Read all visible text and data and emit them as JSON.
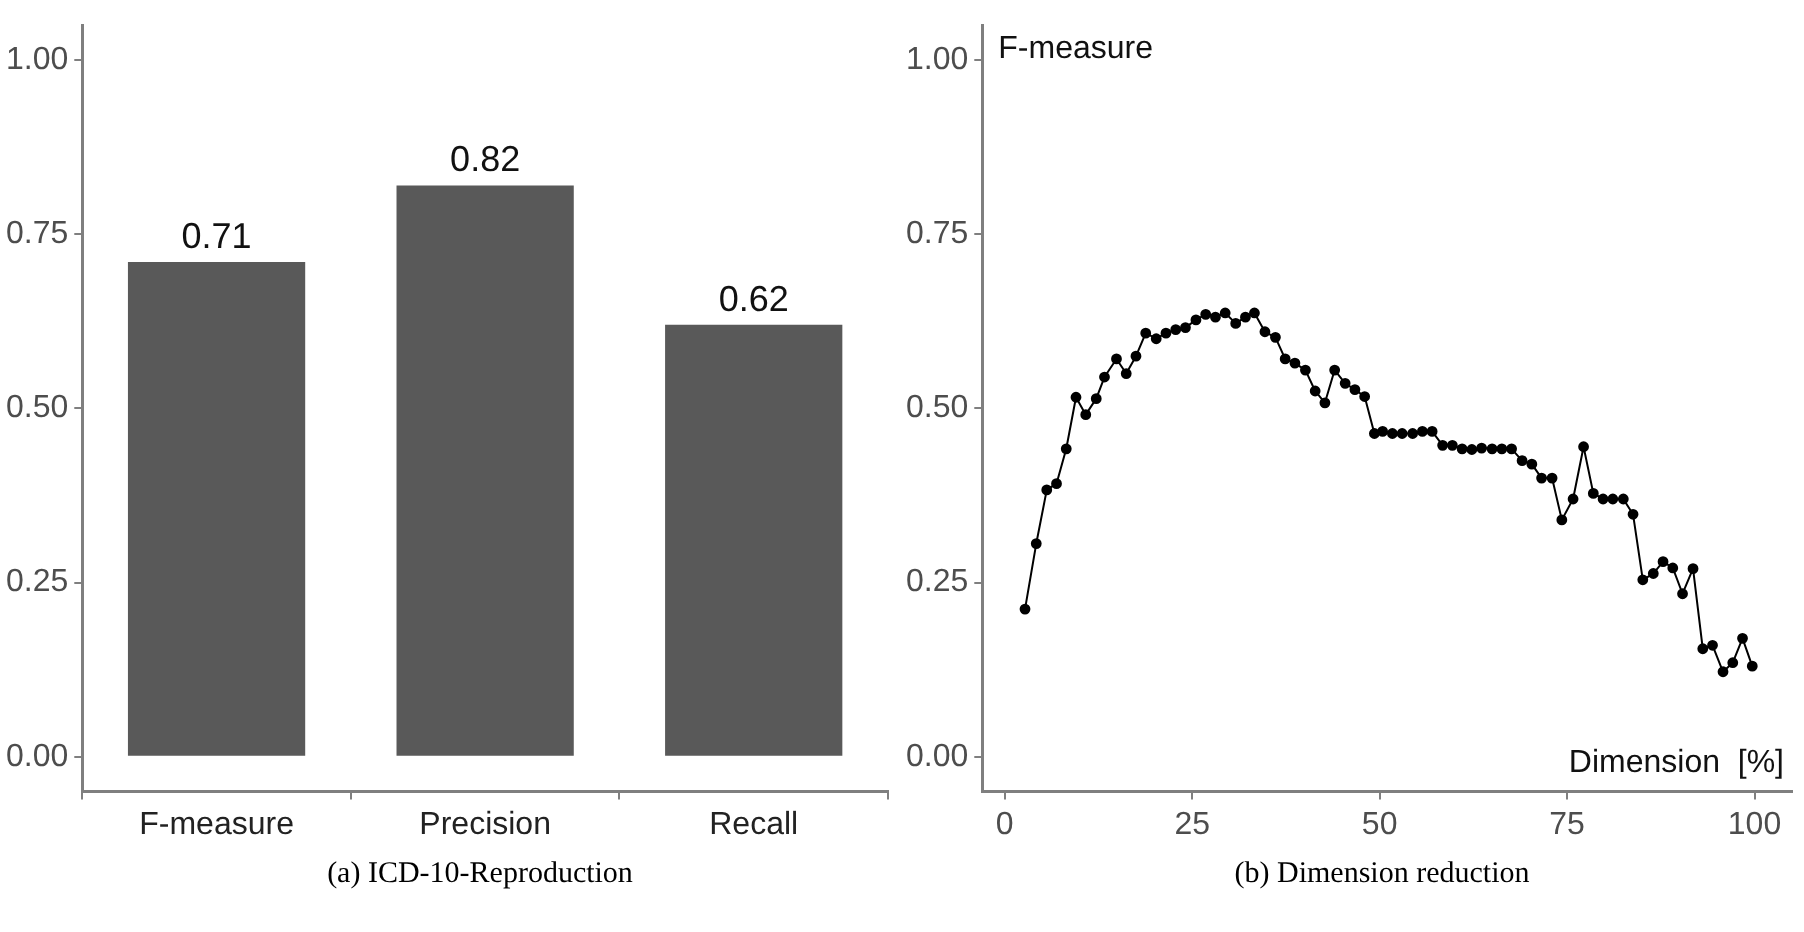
{
  "chart_data": [
    {
      "type": "bar",
      "categories": [
        "F-measure",
        "Precision",
        "Recall"
      ],
      "values": [
        0.71,
        0.82,
        0.62
      ],
      "color": "#595959",
      "data_labels": true,
      "grid": false,
      "ylim": [
        -0.05,
        1.05
      ],
      "yticks": [
        {
          "value": 0,
          "label": "0.00"
        },
        {
          "value": 0.25,
          "label": "0.25"
        },
        {
          "value": 0.5,
          "label": "0.50"
        },
        {
          "value": 0.75,
          "label": "0.75"
        },
        {
          "value": 1,
          "label": "1.00"
        }
      ],
      "annotations": [
        "(a)  ICD-10-Reproduction"
      ]
    },
    {
      "type": "line",
      "ylabel": "F-measure",
      "xlabel": "Dimension  [%]",
      "color": "#000000",
      "marker": "circle",
      "grid": false,
      "x": [
        2.7,
        4.2,
        5.6,
        6.9,
        8.2,
        9.5,
        10.8,
        12.2,
        13.3,
        14.9,
        16.2,
        17.5,
        18.8,
        20.2,
        21.5,
        22.8,
        24.1,
        25.5,
        26.8,
        28.1,
        29.4,
        30.8,
        32.1,
        33.3,
        34.7,
        36.1,
        37.4,
        38.7,
        40.1,
        41.4,
        42.7,
        44,
        45.4,
        46.7,
        48,
        49.3,
        50.4,
        51.7,
        53,
        54.4,
        55.7,
        57,
        58.4,
        59.7,
        61,
        62.3,
        63.6,
        65,
        66.3,
        67.6,
        69,
        70.3,
        71.6,
        73,
        74.3,
        75.8,
        77.2,
        78.5,
        79.8,
        81.1,
        82.5,
        83.8,
        85.1,
        86.5,
        87.8,
        89.1,
        90.4,
        91.8,
        93.1,
        94.4,
        95.8,
        97.1,
        98.4,
        99.7
      ],
      "values": [
        0.212,
        0.306,
        0.383,
        0.392,
        0.442,
        0.516,
        0.491,
        0.514,
        0.545,
        0.571,
        0.55,
        0.575,
        0.608,
        0.6,
        0.608,
        0.613,
        0.616,
        0.627,
        0.635,
        0.631,
        0.637,
        0.622,
        0.631,
        0.637,
        0.61,
        0.602,
        0.571,
        0.565,
        0.555,
        0.525,
        0.508,
        0.555,
        0.536,
        0.527,
        0.517,
        0.464,
        0.467,
        0.464,
        0.464,
        0.464,
        0.467,
        0.467,
        0.447,
        0.447,
        0.442,
        0.441,
        0.443,
        0.442,
        0.442,
        0.442,
        0.425,
        0.42,
        0.4,
        0.4,
        0.34,
        0.37,
        0.445,
        0.378,
        0.37,
        0.37,
        0.37,
        0.348,
        0.254,
        0.263,
        0.28,
        0.271,
        0.234,
        0.27,
        0.155,
        0.16,
        0.122,
        0.135,
        0.17,
        0.13
      ],
      "xlim": [
        -3,
        105
      ],
      "xticks": [
        0,
        25,
        50,
        75,
        100
      ],
      "ylim": [
        -0.05,
        1.05
      ],
      "yticks": [
        {
          "value": 0,
          "label": "0.00"
        },
        {
          "value": 0.25,
          "label": "0.25"
        },
        {
          "value": 0.5,
          "label": "0.50"
        },
        {
          "value": 0.75,
          "label": "0.75"
        },
        {
          "value": 1,
          "label": "1.00"
        }
      ],
      "annotations": [
        "(b)  Dimension reduction"
      ]
    }
  ]
}
